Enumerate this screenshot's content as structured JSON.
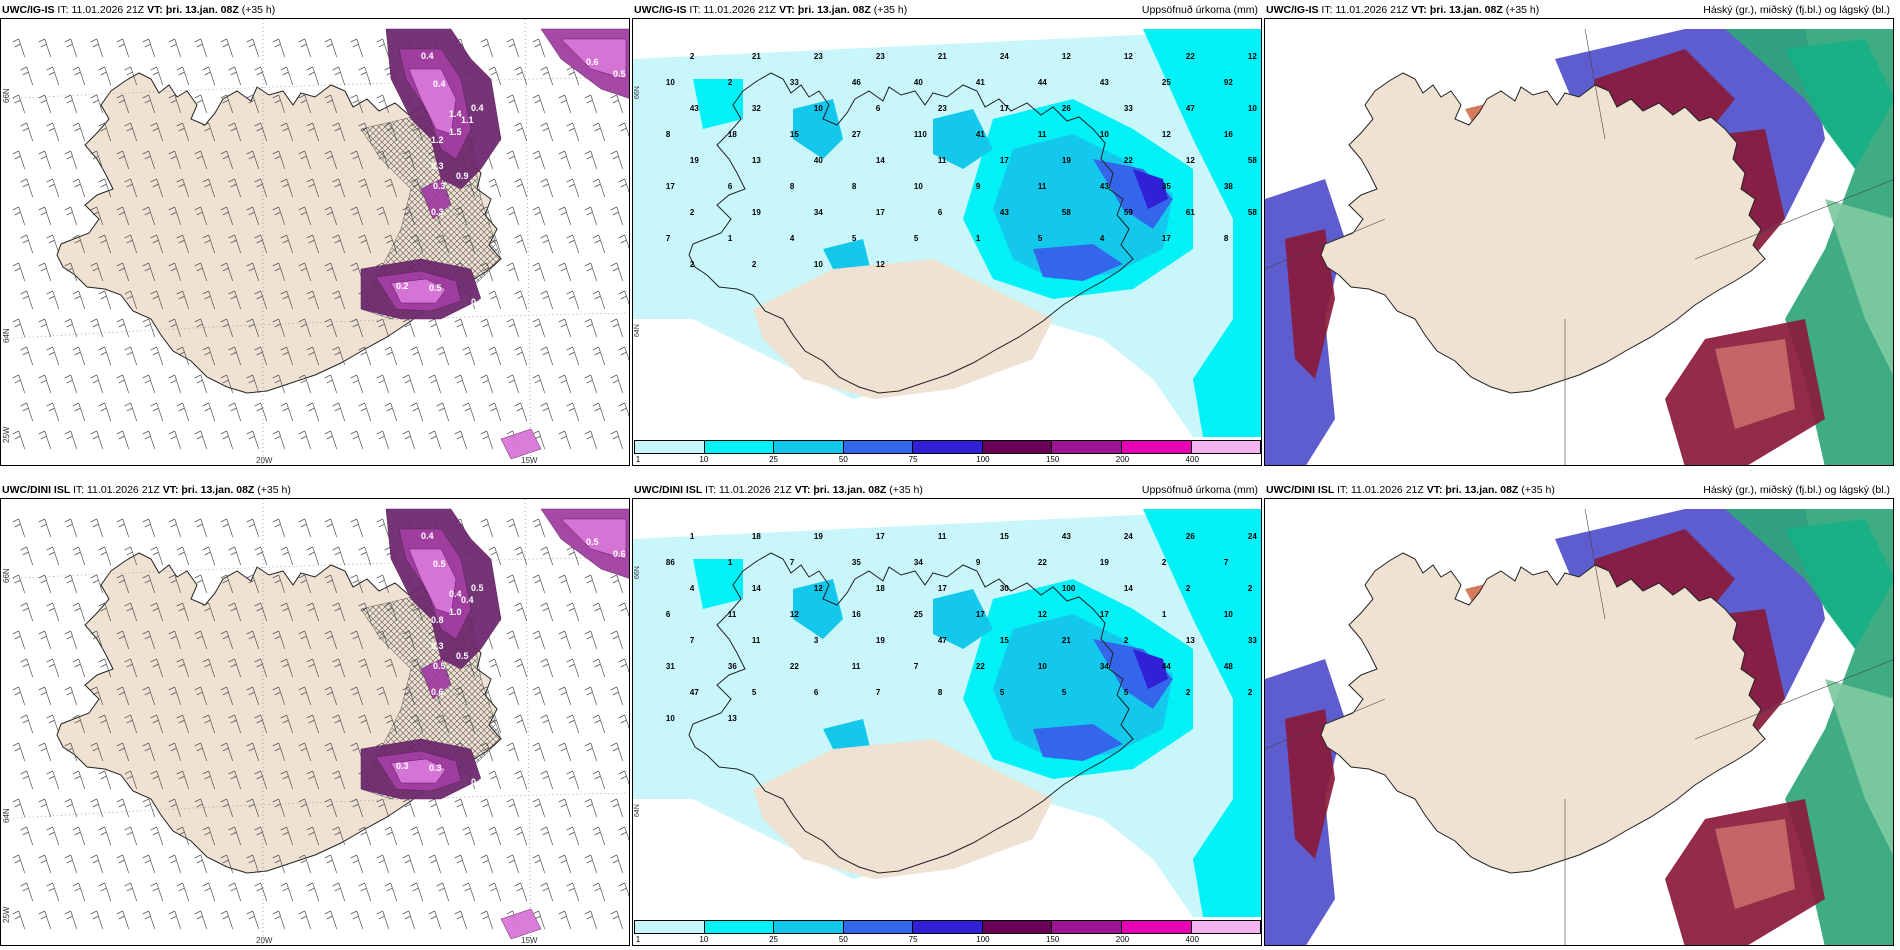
{
  "colors": {
    "land": "#efe2d2",
    "precip": [
      "#c9f6fb",
      "#00f2f7",
      "#14c8ec",
      "#3466ec",
      "#3020d6",
      "#6b0057",
      "#9b1595",
      "#e800b4",
      "#f3b2f1"
    ],
    "purple_light": "#d977d9",
    "purple_mid": "#a23fa2",
    "purple_dark": "#6e2a6e",
    "cloud_high": "#8a1a3a",
    "cloud_mid": "#4f4fcc",
    "cloud_low": "#2fa57a"
  },
  "icons": {
    "coastline": "iceland-coastline-icon",
    "hatch": "crosshatch-icon",
    "barb": "wind-barb-icon"
  },
  "panels": [
    {
      "model": "UWC/IG-IS",
      "it_label": "IT:",
      "it_value": "11.01.2026 21Z",
      "vt_label": "VT:",
      "vt_value": "þri. 13.jan. 08Z",
      "lead": "(+35 h)",
      "right_title": "",
      "kind": "wind",
      "axis_labels": [
        "66N",
        "64N",
        "25W",
        "20W",
        "15W"
      ],
      "blob_values": [
        "0.4",
        "0.4",
        "0.6",
        "0.5",
        "1.4",
        "1.5",
        "1.2",
        "1.1",
        "0.3",
        "0.3",
        "0.4",
        "0.9",
        "0.3",
        "0.2",
        "0.5",
        "0.6",
        "0.5"
      ]
    },
    {
      "model": "UWC/IG-IS",
      "it_label": "IT:",
      "it_value": "11.01.2026 21Z",
      "vt_label": "VT:",
      "vt_value": "þri. 13.jan. 08Z",
      "lead": "(+35 h)",
      "right_title": "Uppsöfnuð úrkoma (mm)",
      "kind": "precip",
      "axis_labels": [
        "66N",
        "64N"
      ],
      "values": [
        "2",
        "21",
        "23",
        "23",
        "21",
        "24",
        "12",
        "12",
        "22",
        "12",
        "10",
        "2",
        "33",
        "46",
        "40",
        "41",
        "44",
        "43",
        "25",
        "92",
        "43",
        "32",
        "10",
        "6",
        "23",
        "17",
        "26",
        "33",
        "47",
        "10",
        "8",
        "18",
        "15",
        "27",
        "110",
        "41",
        "11",
        "10",
        "12",
        "16",
        "19",
        "13",
        "40",
        "14",
        "11",
        "17",
        "19",
        "22",
        "12",
        "58",
        "17",
        "6",
        "8",
        "8",
        "10",
        "9",
        "11",
        "43",
        "35",
        "38",
        "2",
        "19",
        "34",
        "17",
        "6",
        "43",
        "58",
        "59",
        "61",
        "58",
        "7",
        "1",
        "4",
        "5",
        "5",
        "1",
        "5",
        "4",
        "17",
        "8",
        "2",
        "2",
        "10",
        "12"
      ],
      "cbar": [
        "1",
        "10",
        "25",
        "50",
        "75",
        "100",
        "150",
        "200",
        "400"
      ]
    },
    {
      "model": "UWC/IG-IS",
      "it_label": "IT:",
      "it_value": "11.01.2026 21Z",
      "vt_label": "VT:",
      "vt_value": "þri. 13.jan. 08Z",
      "lead": "(+35 h)",
      "right_title": "Háský (gr.), miðský (fj.bl.) og lágský (bl.)",
      "kind": "cloud"
    },
    {
      "model": "UWC/DINI ISL",
      "it_label": "IT:",
      "it_value": "11.01.2026 21Z",
      "vt_label": "VT:",
      "vt_value": "þri. 13.jan. 08Z",
      "lead": "(+35 h)",
      "right_title": "",
      "kind": "wind",
      "axis_labels": [
        "66N",
        "64N",
        "25W",
        "20W",
        "15W"
      ],
      "blob_values": [
        "0.4",
        "0.5",
        "0.5",
        "0.6",
        "0.4",
        "1.0",
        "0.8",
        "0.4",
        "0.3",
        "0.5",
        "0.5",
        "0.5",
        "0.6",
        "0.3",
        "0.3",
        "0.6",
        "0.2"
      ]
    },
    {
      "model": "UWC/DINI ISL",
      "it_label": "IT:",
      "it_value": "11.01.2026 21Z",
      "vt_label": "VT:",
      "vt_value": "þri. 13.jan. 08Z",
      "lead": "(+35 h)",
      "right_title": "Uppsöfnuð úrkoma (mm)",
      "kind": "precip",
      "axis_labels": [
        "66N",
        "64N"
      ],
      "values": [
        "1",
        "18",
        "19",
        "17",
        "11",
        "15",
        "43",
        "24",
        "26",
        "24",
        "86",
        "1",
        "7",
        "35",
        "34",
        "9",
        "22",
        "19",
        "2",
        "7",
        "4",
        "14",
        "12",
        "18",
        "17",
        "30",
        "100",
        "14",
        "2",
        "2",
        "6",
        "11",
        "12",
        "16",
        "25",
        "17",
        "12",
        "17",
        "1",
        "10",
        "7",
        "11",
        "3",
        "19",
        "47",
        "15",
        "21",
        "2",
        "13",
        "33",
        "31",
        "36",
        "22",
        "11",
        "7",
        "22",
        "10",
        "34",
        "44",
        "48",
        "47",
        "5",
        "6",
        "7",
        "8",
        "5",
        "5",
        "5",
        "2",
        "2",
        "10",
        "13"
      ],
      "cbar": [
        "1",
        "10",
        "25",
        "50",
        "75",
        "100",
        "150",
        "200",
        "400"
      ]
    },
    {
      "model": "UWC/DINI ISL",
      "it_label": "IT:",
      "it_value": "11.01.2026 21Z",
      "vt_label": "VT:",
      "vt_value": "þri. 13.jan. 08Z",
      "lead": "(+35 h)",
      "right_title": "Háský (gr.), miðský (fj.bl.) og lágský (bl.)",
      "kind": "cloud"
    }
  ]
}
